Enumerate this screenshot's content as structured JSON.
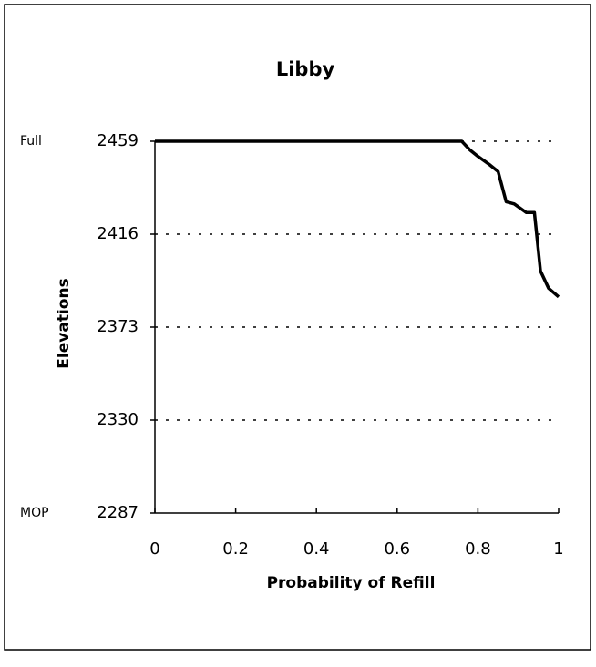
{
  "chart_data": {
    "type": "line",
    "title": "Libby",
    "x_label": "Probability of Refill",
    "y_label": "Elevations",
    "x": [
      0,
      0.76,
      0.78,
      0.8,
      0.83,
      0.85,
      0.87,
      0.89,
      0.92,
      0.94,
      0.955,
      0.975,
      1
    ],
    "series": [
      {
        "name": "Libby",
        "color": "#000000",
        "values": [
          2459,
          2459,
          2455,
          2452,
          2448,
          2445,
          2431,
          2430,
          2426,
          2426,
          2399,
          2391,
          2387
        ]
      }
    ],
    "xlim": [
      0,
      1
    ],
    "xticks": [
      0,
      0.2,
      0.4,
      0.6,
      0.8,
      1
    ],
    "ylim": [
      2287,
      2459
    ],
    "yticks": [
      2287,
      2330,
      2373,
      2416,
      2459
    ],
    "grid": true,
    "annotations": [
      {
        "text": "Full",
        "y": 2459
      },
      {
        "text": "MOP",
        "y": 2287
      }
    ]
  }
}
